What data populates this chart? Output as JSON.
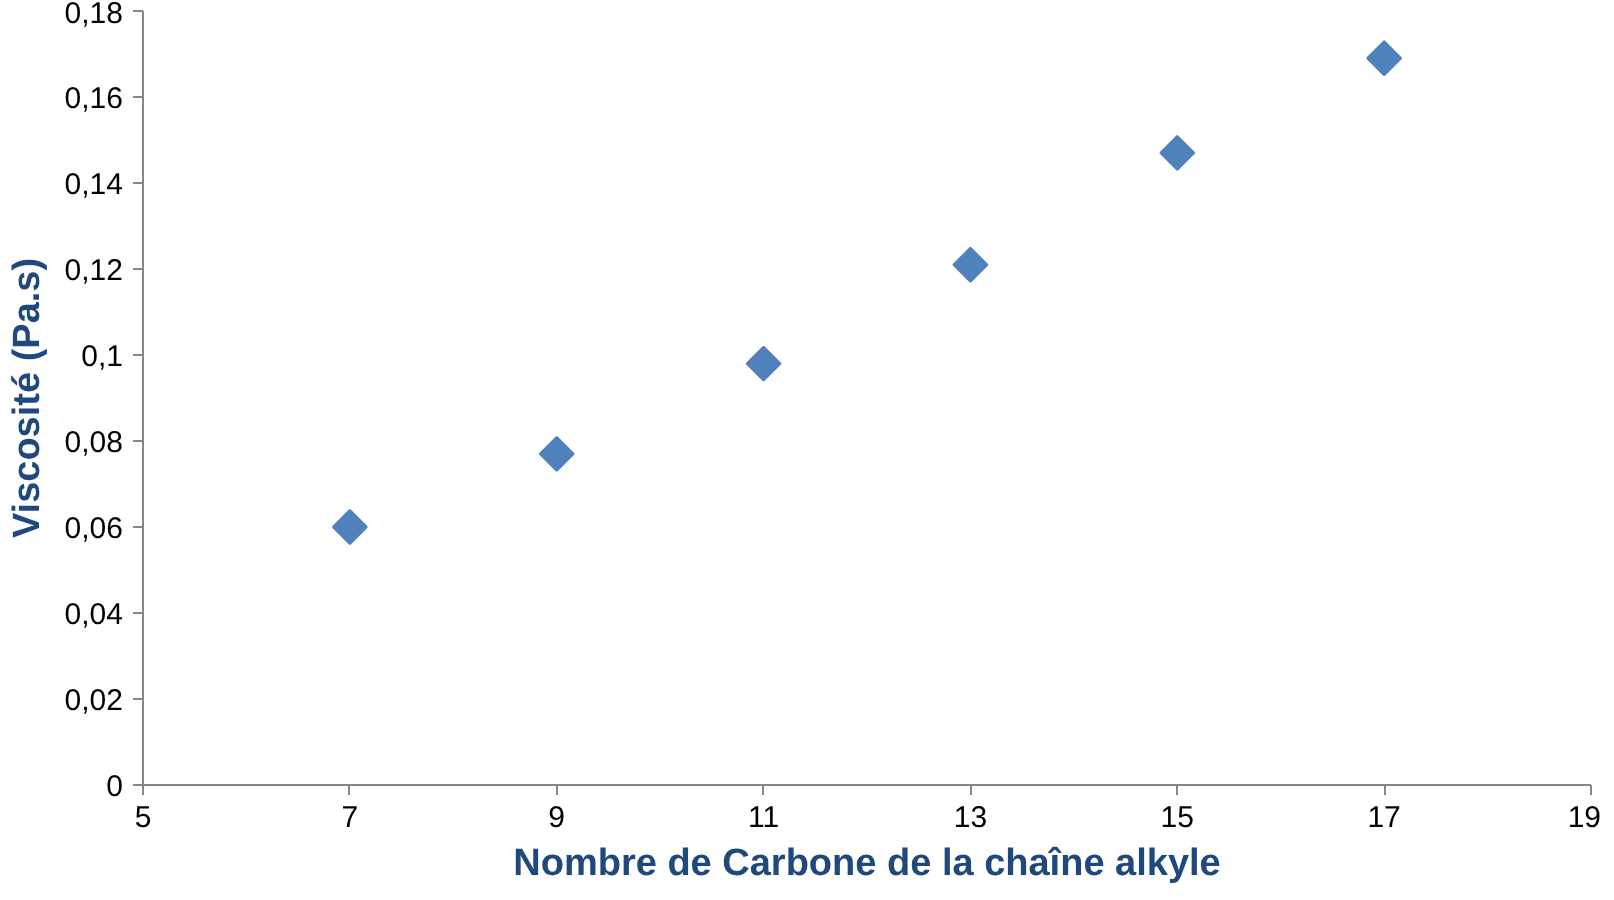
{
  "chart_data": {
    "type": "scatter",
    "xlabel": "Nombre de Carbone de la chaîne alkyle",
    "ylabel": "Viscosité (Pa.s)",
    "x": [
      7,
      9,
      11,
      13,
      15,
      17
    ],
    "series": [
      {
        "color": "#4f81bd",
        "values": [
          0.06,
          0.077,
          0.098,
          0.121,
          0.147,
          0.169
        ]
      }
    ],
    "marker": "diamond",
    "grid": false,
    "xlim": [
      5,
      19
    ],
    "xticks": [
      5,
      7,
      9,
      11,
      13,
      15,
      17,
      19
    ],
    "ylim": [
      0,
      0.18
    ],
    "yticks": [
      0,
      {
        "value": 0.02,
        "label": "0,02"
      },
      {
        "value": 0.04,
        "label": "0,04"
      },
      {
        "value": 0.06,
        "label": "0,06"
      },
      {
        "value": 0.08,
        "label": "0,08"
      },
      {
        "value": 0.1,
        "label": "0,1"
      },
      {
        "value": 0.12,
        "label": "0,12"
      },
      {
        "value": 0.14,
        "label": "0,14"
      },
      {
        "value": 0.16,
        "label": "0,16"
      },
      {
        "value": 0.18,
        "label": "0,18"
      }
    ]
  }
}
